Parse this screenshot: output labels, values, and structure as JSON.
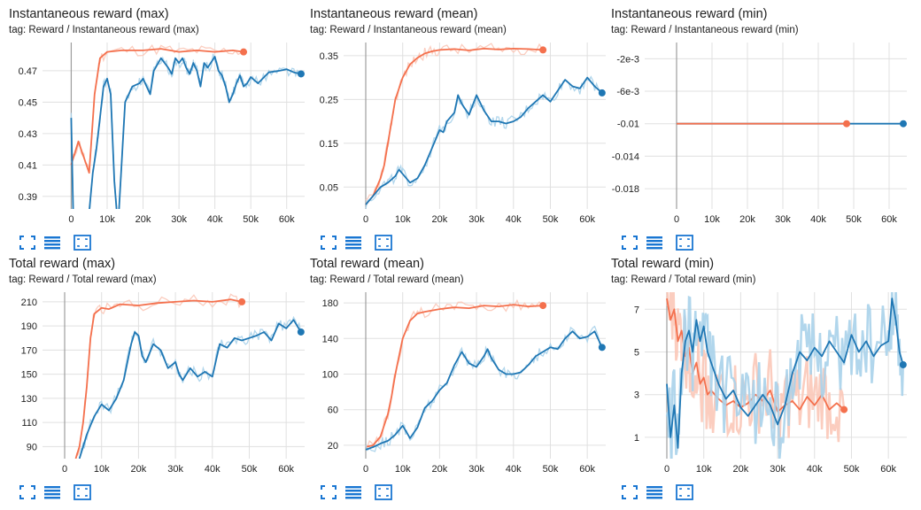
{
  "colors": {
    "orange": "#f4704d",
    "orange_light": "#fbc8b8",
    "blue": "#1f77b4",
    "blue_light": "#a9d2ea",
    "grid": "#e0e0e0",
    "axis": "#9e9e9e"
  },
  "toolbar_icons": [
    "fullscreen-icon",
    "data-table-icon",
    "fit-domain-icon"
  ],
  "chart_data": [
    {
      "type": "line",
      "title": "Instantaneous reward (max)",
      "tag": "tag: Reward / Instantaneous reward (max)",
      "xticks": [
        "0",
        "10k",
        "20k",
        "30k",
        "40k",
        "50k",
        "60k"
      ],
      "yticks": [
        "0.39",
        "0.41",
        "0.43",
        "0.45",
        "0.47"
      ],
      "xlim": [
        -8000,
        65000
      ],
      "ylim": [
        0.382,
        0.488
      ],
      "series": [
        {
          "color": "orange",
          "end_marker": true,
          "x": [
            0,
            2000,
            3500,
            5000,
            6500,
            8000,
            10000,
            14000,
            20000,
            25000,
            30000,
            35000,
            40000,
            45000,
            48000
          ],
          "y": [
            0.41,
            0.425,
            0.415,
            0.405,
            0.455,
            0.478,
            0.482,
            0.483,
            0.483,
            0.484,
            0.482,
            0.483,
            0.482,
            0.483,
            0.482
          ]
        },
        {
          "color": "blue",
          "end_marker": true,
          "x": [
            0,
            1000,
            2000,
            3000,
            4000,
            5000,
            6000,
            7000,
            8000,
            9000,
            10000,
            11000,
            12000,
            13000,
            15000,
            17000,
            19000,
            20000,
            22000,
            23000,
            25000,
            27000,
            28000,
            29000,
            30000,
            31000,
            32000,
            33000,
            34000,
            35000,
            36000,
            37000,
            38000,
            40000,
            41000,
            42000,
            43000,
            44000,
            45000,
            46000,
            47000,
            48000,
            49000,
            50000,
            52000,
            55000,
            58000,
            60000,
            62000,
            64000
          ],
          "y": [
            0.44,
            0.33,
            0.38,
            0.37,
            0.36,
            0.38,
            0.405,
            0.42,
            0.44,
            0.46,
            0.465,
            0.455,
            0.4,
            0.37,
            0.45,
            0.46,
            0.462,
            0.465,
            0.455,
            0.47,
            0.478,
            0.472,
            0.468,
            0.478,
            0.475,
            0.478,
            0.472,
            0.468,
            0.475,
            0.47,
            0.46,
            0.475,
            0.472,
            0.479,
            0.47,
            0.467,
            0.46,
            0.45,
            0.455,
            0.462,
            0.467,
            0.46,
            0.462,
            0.466,
            0.462,
            0.469,
            0.47,
            0.471,
            0.469,
            0.468
          ]
        }
      ]
    },
    {
      "type": "line",
      "title": "Instantaneous reward (mean)",
      "tag": "tag: Reward / Instantaneous reward (mean)",
      "xticks": [
        "0",
        "10k",
        "20k",
        "30k",
        "40k",
        "50k",
        "60k"
      ],
      "yticks": [
        "0.05",
        "0.15",
        "0.25",
        "0.35"
      ],
      "xlim": [
        -6000,
        65000
      ],
      "ylim": [
        0.0,
        0.38
      ],
      "series": [
        {
          "color": "orange",
          "end_marker": true,
          "x": [
            0,
            2000,
            4000,
            5000,
            6000,
            7000,
            8000,
            10000,
            12000,
            14000,
            16000,
            18000,
            20000,
            24000,
            28000,
            32000,
            36000,
            40000,
            44000,
            48000
          ],
          "y": [
            0.01,
            0.03,
            0.07,
            0.1,
            0.15,
            0.2,
            0.25,
            0.3,
            0.33,
            0.345,
            0.355,
            0.36,
            0.363,
            0.365,
            0.362,
            0.366,
            0.364,
            0.366,
            0.365,
            0.363
          ]
        },
        {
          "color": "blue",
          "end_marker": true,
          "x": [
            0,
            2000,
            4000,
            6000,
            8000,
            9000,
            10000,
            12000,
            14000,
            16000,
            18000,
            20000,
            21000,
            22000,
            24000,
            25000,
            26000,
            28000,
            30000,
            32000,
            34000,
            36000,
            38000,
            40000,
            42000,
            44000,
            46000,
            48000,
            50000,
            52000,
            54000,
            56000,
            58000,
            60000,
            62000,
            64000
          ],
          "y": [
            0.01,
            0.03,
            0.05,
            0.06,
            0.075,
            0.09,
            0.08,
            0.06,
            0.07,
            0.1,
            0.14,
            0.18,
            0.175,
            0.2,
            0.22,
            0.26,
            0.24,
            0.215,
            0.26,
            0.225,
            0.2,
            0.2,
            0.195,
            0.2,
            0.21,
            0.23,
            0.245,
            0.26,
            0.245,
            0.27,
            0.295,
            0.28,
            0.275,
            0.3,
            0.28,
            0.265
          ]
        }
      ]
    },
    {
      "type": "line",
      "title": "Instantaneous reward (min)",
      "tag": "tag: Reward / Instantaneous reward (min)",
      "xticks": [
        "0",
        "10k",
        "20k",
        "30k",
        "40k",
        "50k",
        "60k"
      ],
      "yticks": [
        "-2e-3",
        "-6e-3",
        "-0.01",
        "-0.014",
        "-0.018"
      ],
      "ytick_values": [
        -0.002,
        -0.006,
        -0.01,
        -0.014,
        -0.018
      ],
      "xlim": [
        -9000,
        65000
      ],
      "ylim": [
        -0.0205,
        0.0
      ],
      "series": [
        {
          "color": "blue",
          "end_marker": true,
          "x": [
            0,
            64000
          ],
          "y": [
            -0.01,
            -0.01
          ]
        },
        {
          "color": "orange",
          "end_marker": true,
          "x": [
            0,
            48000
          ],
          "y": [
            -0.01,
            -0.01
          ]
        }
      ]
    },
    {
      "type": "line",
      "title": "Total reward (max)",
      "tag": "tag: Reward / Total reward (max)",
      "xticks": [
        "0",
        "10k",
        "20k",
        "30k",
        "40k",
        "50k",
        "60k"
      ],
      "yticks": [
        "90",
        "110",
        "130",
        "150",
        "170",
        "190",
        "210"
      ],
      "xlim": [
        -6000,
        65000
      ],
      "ylim": [
        80,
        218
      ],
      "series": [
        {
          "color": "orange",
          "end_marker": true,
          "x": [
            3000,
            4000,
            5000,
            6000,
            7000,
            8000,
            10000,
            12000,
            15000,
            20000,
            25000,
            30000,
            35000,
            40000,
            45000,
            48000
          ],
          "y": [
            80,
            90,
            110,
            140,
            180,
            200,
            205,
            204,
            208,
            207,
            209,
            210,
            211,
            210,
            212,
            210
          ]
        },
        {
          "color": "blue",
          "end_marker": true,
          "x": [
            4000,
            5000,
            6000,
            8000,
            10000,
            12000,
            14000,
            16000,
            18000,
            19000,
            20000,
            21000,
            22000,
            24000,
            26000,
            28000,
            30000,
            31000,
            32000,
            34000,
            36000,
            38000,
            40000,
            42000,
            44000,
            46000,
            48000,
            50000,
            52000,
            54000,
            56000,
            58000,
            60000,
            62000,
            64000
          ],
          "y": [
            80,
            90,
            100,
            115,
            125,
            120,
            130,
            145,
            175,
            185,
            182,
            165,
            160,
            175,
            170,
            155,
            160,
            150,
            145,
            155,
            148,
            152,
            148,
            175,
            172,
            180,
            178,
            180,
            182,
            185,
            178,
            192,
            188,
            195,
            185
          ]
        }
      ]
    },
    {
      "type": "line",
      "title": "Total reward (mean)",
      "tag": "tag: Reward / Total reward (mean)",
      "xticks": [
        "0",
        "10k",
        "20k",
        "30k",
        "40k",
        "50k",
        "60k"
      ],
      "yticks": [
        "20",
        "60",
        "100",
        "140",
        "180"
      ],
      "xlim": [
        -6000,
        65000
      ],
      "ylim": [
        5,
        192
      ],
      "series": [
        {
          "color": "orange",
          "end_marker": true,
          "x": [
            0,
            2000,
            4000,
            6000,
            7000,
            8000,
            10000,
            12000,
            14000,
            16000,
            20000,
            24000,
            28000,
            32000,
            36000,
            40000,
            44000,
            48000
          ],
          "y": [
            18,
            20,
            30,
            55,
            75,
            100,
            140,
            160,
            168,
            170,
            173,
            175,
            174,
            177,
            176,
            178,
            176,
            177
          ]
        },
        {
          "color": "blue",
          "end_marker": true,
          "x": [
            0,
            2000,
            4000,
            6000,
            8000,
            10000,
            11000,
            12000,
            14000,
            16000,
            18000,
            20000,
            22000,
            24000,
            26000,
            28000,
            30000,
            32000,
            33000,
            34000,
            36000,
            38000,
            40000,
            42000,
            44000,
            46000,
            48000,
            50000,
            52000,
            54000,
            56000,
            58000,
            60000,
            62000,
            64000
          ],
          "y": [
            15,
            18,
            22,
            25,
            32,
            42,
            35,
            28,
            40,
            62,
            70,
            82,
            90,
            110,
            125,
            112,
            108,
            120,
            128,
            118,
            105,
            100,
            100,
            102,
            110,
            120,
            125,
            130,
            128,
            140,
            148,
            140,
            142,
            148,
            130
          ]
        }
      ]
    },
    {
      "type": "line",
      "title": "Total reward (min)",
      "tag": "tag: Reward / Total reward (min)",
      "xticks": [
        "0",
        "10k",
        "20k",
        "30k",
        "40k",
        "50k",
        "60k"
      ],
      "yticks": [
        "1",
        "3",
        "5",
        "7"
      ],
      "xlim": [
        -6000,
        65000
      ],
      "ylim": [
        0,
        7.8
      ],
      "series": [
        {
          "color": "orange",
          "end_marker": true,
          "x": [
            0,
            1000,
            2000,
            3000,
            4000,
            5000,
            6000,
            7000,
            8000,
            9000,
            10000,
            11000,
            12000,
            14000,
            16000,
            18000,
            20000,
            22000,
            24000,
            26000,
            28000,
            30000,
            32000,
            34000,
            36000,
            38000,
            40000,
            42000,
            44000,
            46000,
            48000
          ],
          "y": [
            7.5,
            6.5,
            7.0,
            5.5,
            6.0,
            4.8,
            5.2,
            4.0,
            4.5,
            3.5,
            3.8,
            3.0,
            3.2,
            2.8,
            2.5,
            2.7,
            2.4,
            2.6,
            3.0,
            2.7,
            3.2,
            2.2,
            2.5,
            2.7,
            2.3,
            2.9,
            2.5,
            3.0,
            2.3,
            2.6,
            2.3
          ]
        },
        {
          "color": "blue",
          "end_marker": true,
          "x": [
            0,
            1000,
            2000,
            3000,
            4000,
            5000,
            6000,
            7000,
            8000,
            9000,
            10000,
            11000,
            12000,
            14000,
            16000,
            18000,
            20000,
            22000,
            24000,
            26000,
            28000,
            30000,
            32000,
            34000,
            36000,
            38000,
            40000,
            42000,
            44000,
            46000,
            48000,
            50000,
            52000,
            54000,
            56000,
            58000,
            60000,
            61000,
            62000,
            63000,
            64000
          ],
          "y": [
            3.5,
            1.0,
            2.5,
            0.5,
            4.0,
            5.5,
            6.0,
            5.0,
            6.5,
            5.5,
            6.2,
            5.0,
            4.5,
            3.5,
            2.8,
            3.2,
            2.4,
            2.0,
            2.5,
            3.0,
            2.5,
            1.6,
            2.5,
            4.0,
            5.0,
            4.6,
            5.2,
            4.8,
            5.5,
            5.0,
            4.5,
            5.8,
            5.0,
            5.5,
            4.8,
            5.3,
            5.5,
            7.5,
            6.5,
            5.0,
            4.4
          ]
        }
      ]
    }
  ]
}
